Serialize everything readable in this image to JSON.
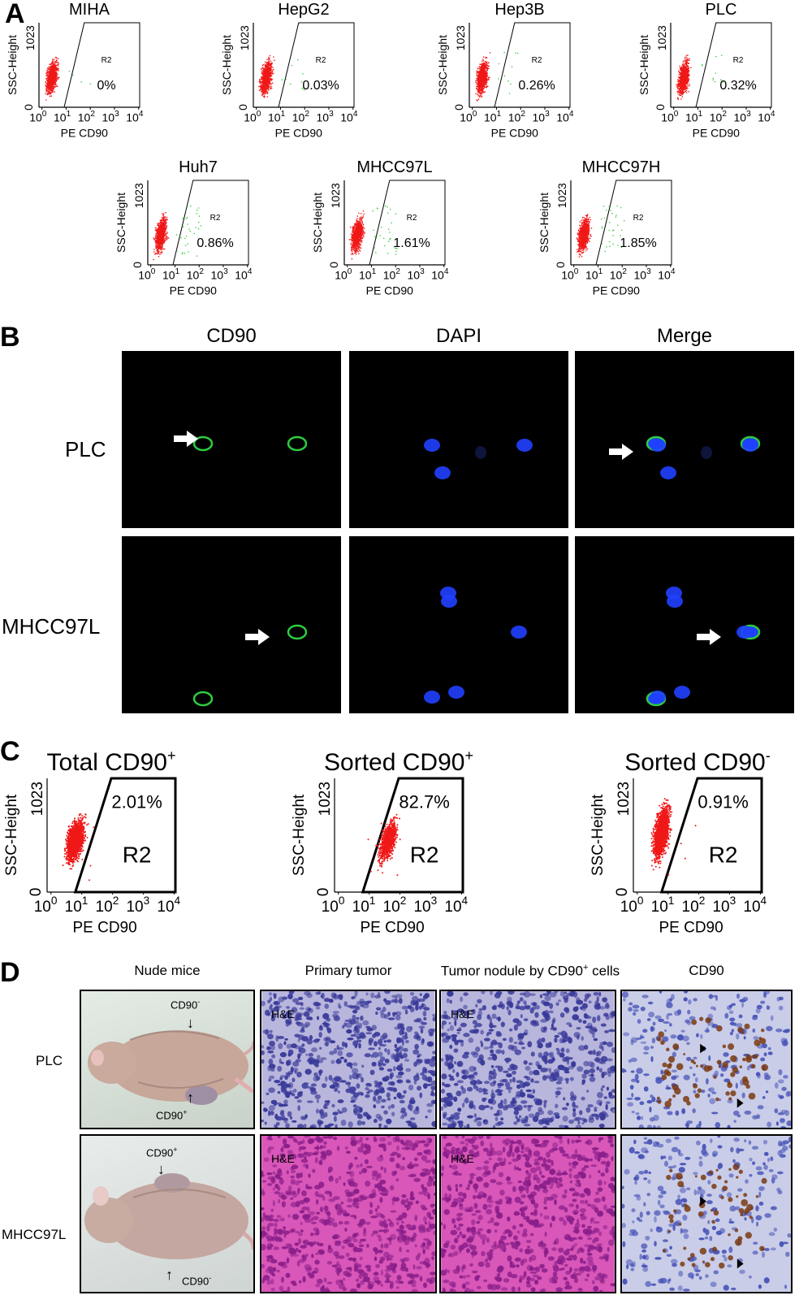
{
  "panels": {
    "A": "A",
    "B": "B",
    "C": "C",
    "D": "D"
  },
  "panelA": {
    "plots": [
      {
        "title": "MIHA",
        "percent": "0%",
        "gate": "R2"
      },
      {
        "title": "HepG2",
        "percent": "0.03%",
        "gate": "R2"
      },
      {
        "title": "Hep3B",
        "percent": "0.26%",
        "gate": "R2"
      },
      {
        "title": "PLC",
        "percent": "0.32%",
        "gate": "R2"
      },
      {
        "title": "Huh7",
        "percent": "0.86%",
        "gate": "R2"
      },
      {
        "title": "MHCC97L",
        "percent": "1.61%",
        "gate": "R2"
      },
      {
        "title": "MHCC97H",
        "percent": "1.85%",
        "gate": "R2"
      }
    ],
    "ylabel": "SSC-Height",
    "xlabel": "PE CD90",
    "ytick_top": "1023",
    "ytick_bottom": "0",
    "xticks": [
      "10",
      "10",
      "10",
      "10",
      "10"
    ],
    "xtick_exps": [
      "0",
      "1",
      "2",
      "3",
      "4"
    ]
  },
  "panelB": {
    "columns": [
      "CD90",
      "DAPI",
      "Merge"
    ],
    "rows": [
      "PLC",
      "MHCC97L"
    ],
    "colors": {
      "cd90": "#2ecc40",
      "dapi": "#2040ff"
    }
  },
  "panelC": {
    "plots": [
      {
        "title": "Total CD90",
        "sup": "+",
        "percent": "2.01%",
        "gate": "R2"
      },
      {
        "title": "Sorted CD90",
        "sup": "+",
        "percent": "82.7%",
        "gate": "R2"
      },
      {
        "title": "Sorted CD90",
        "sup": "-",
        "percent": "0.91%",
        "gate": "R2"
      }
    ],
    "ylabel": "SSC-Height",
    "xlabel": "PE CD90",
    "ytick_top": "1023",
    "ytick_bottom": "0"
  },
  "panelD": {
    "columns": [
      "Nude mice",
      "Primary tumor",
      "Tumor nodule by CD90",
      "CD90"
    ],
    "column3_sup": "+",
    "column3_suffix": " cells",
    "rows": [
      "PLC",
      "MHCC97L"
    ],
    "he_label": "H&E",
    "plc_top_arrow": "CD90",
    "plc_top_arrow_sup": "-",
    "plc_bottom_arrow": "CD90",
    "plc_bottom_arrow_sup": "+",
    "m97_top_arrow": "CD90",
    "m97_top_arrow_sup": "+",
    "m97_bottom_arrow": "CD90",
    "m97_bottom_arrow_sup": "-",
    "colors": {
      "he_plc": "#b8b6dc",
      "he_m97": "#d857b8",
      "ihc_bg": "#c9cde8",
      "ihc_brown": "#7a3a10"
    }
  }
}
